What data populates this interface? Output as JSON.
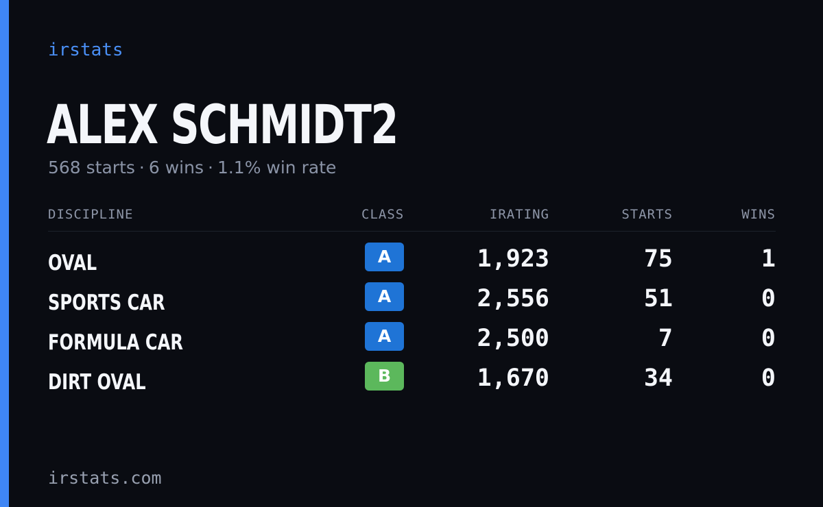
{
  "brand": "irstats",
  "player": {
    "name": "ALEX SCHMIDT2",
    "starts_text": "568 starts",
    "wins_text": "6 wins",
    "win_rate_text": "1.1% win rate",
    "separator": "·"
  },
  "table": {
    "headers": {
      "discipline": "DISCIPLINE",
      "class": "CLASS",
      "irating": "IRATING",
      "starts": "STARTS",
      "wins": "WINS"
    },
    "rows": [
      {
        "discipline": "OVAL",
        "class": "A",
        "class_color": "#1f74d6",
        "irating": "1,923",
        "starts": "75",
        "wins": "1"
      },
      {
        "discipline": "SPORTS CAR",
        "class": "A",
        "class_color": "#1f74d6",
        "irating": "2,556",
        "starts": "51",
        "wins": "0"
      },
      {
        "discipline": "FORMULA CAR",
        "class": "A",
        "class_color": "#1f74d6",
        "irating": "2,500",
        "starts": "7",
        "wins": "0"
      },
      {
        "discipline": "DIRT OVAL",
        "class": "B",
        "class_color": "#5cb85c",
        "irating": "1,670",
        "starts": "34",
        "wins": "0"
      }
    ]
  },
  "footer": "irstats.com",
  "colors": {
    "accent": "#3f86f5",
    "background": "#0a0c12",
    "class_a": "#1f74d6",
    "class_b": "#5cb85c"
  }
}
